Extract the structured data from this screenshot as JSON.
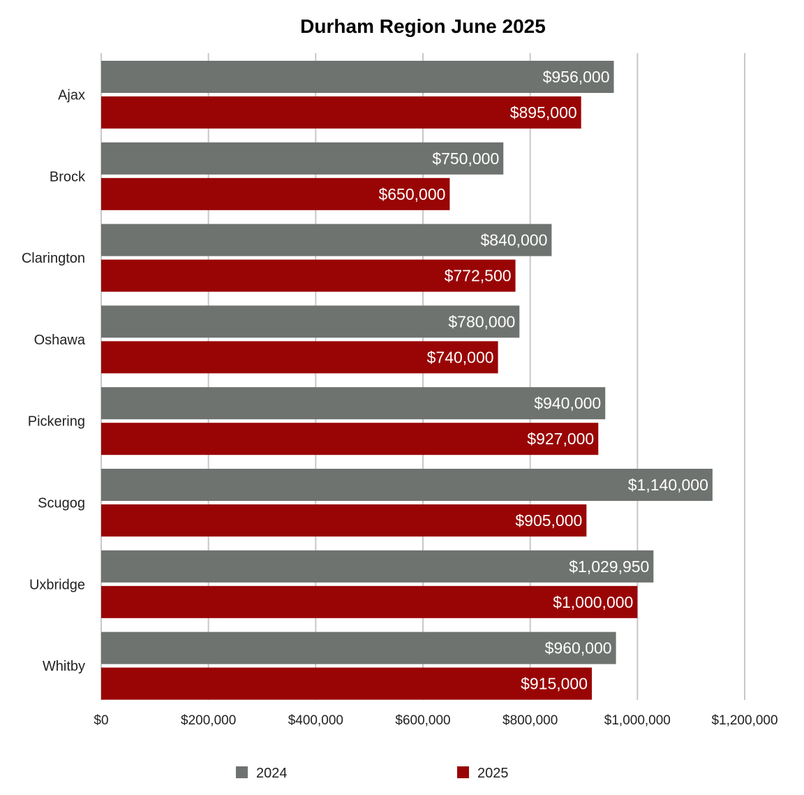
{
  "chart_data": {
    "type": "bar",
    "orientation": "horizontal",
    "title": "Durham Region June 2025",
    "xlabel": "",
    "ylabel": "",
    "categories": [
      "Ajax",
      "Brock",
      "Clarington",
      "Oshawa",
      "Pickering",
      "Scugog",
      "Uxbridge",
      "Whitby"
    ],
    "series": [
      {
        "name": "2024",
        "color": "#6f7370",
        "values": [
          956000,
          750000,
          840000,
          780000,
          940000,
          1140000,
          1029950,
          960000
        ],
        "labels": [
          "$956,000",
          "$750,000",
          "$840,000",
          "$780,000",
          "$940,000",
          "$1,140,000",
          "$1,029,950",
          "$960,000"
        ]
      },
      {
        "name": "2025",
        "color": "#990505",
        "values": [
          895000,
          650000,
          772500,
          740000,
          927000,
          905000,
          1000000,
          915000
        ],
        "labels": [
          "$895,000",
          "$650,000",
          "$772,500",
          "$740,000",
          "$927,000",
          "$905,000",
          "$1,000,000",
          "$915,000"
        ]
      }
    ],
    "xlim": [
      0,
      1200000
    ],
    "ticks": [
      0,
      200000,
      400000,
      600000,
      800000,
      1000000,
      1200000
    ],
    "tick_labels": [
      "$0",
      "$200,000",
      "$400,000",
      "$600,000",
      "$800,000",
      "$1,000,000",
      "$1,200,000"
    ],
    "grid": true,
    "legend_position": "bottom"
  }
}
